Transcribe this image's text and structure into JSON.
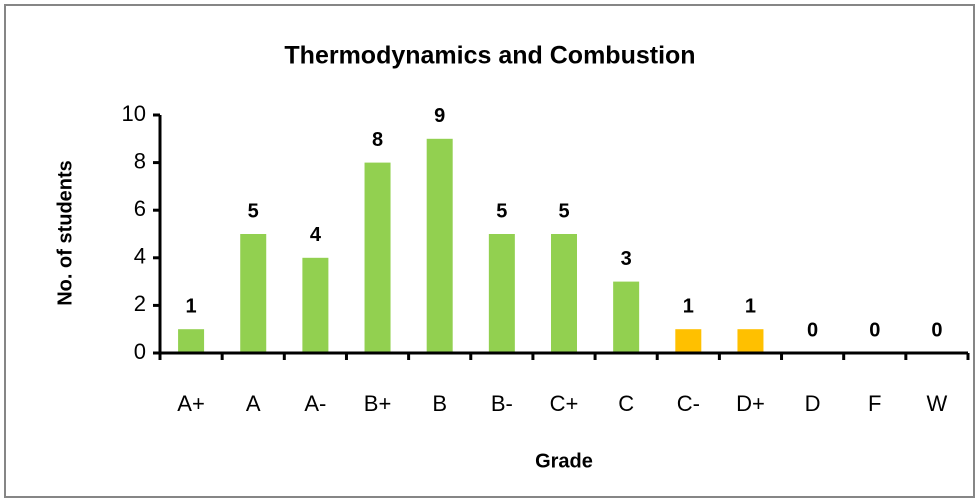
{
  "chart_data": {
    "type": "bar",
    "title": "Thermodynamics and Combustion",
    "x_label": "Grade",
    "y_label": "No. of students",
    "categories": [
      "A+",
      "A",
      "A-",
      "B+",
      "B",
      "B-",
      "C+",
      "C",
      "C-",
      "D+",
      "D",
      "F",
      "W"
    ],
    "values": [
      1,
      5,
      4,
      8,
      9,
      5,
      5,
      3,
      1,
      1,
      0,
      0,
      0
    ],
    "colors": [
      "#92d050",
      "#92d050",
      "#92d050",
      "#92d050",
      "#92d050",
      "#92d050",
      "#92d050",
      "#92d050",
      "#ffc000",
      "#ffc000",
      "#92d050",
      "#92d050",
      "#92d050"
    ],
    "ylim": [
      0,
      10
    ],
    "yticks": [
      0,
      2,
      4,
      6,
      8,
      10
    ],
    "grid": false
  }
}
